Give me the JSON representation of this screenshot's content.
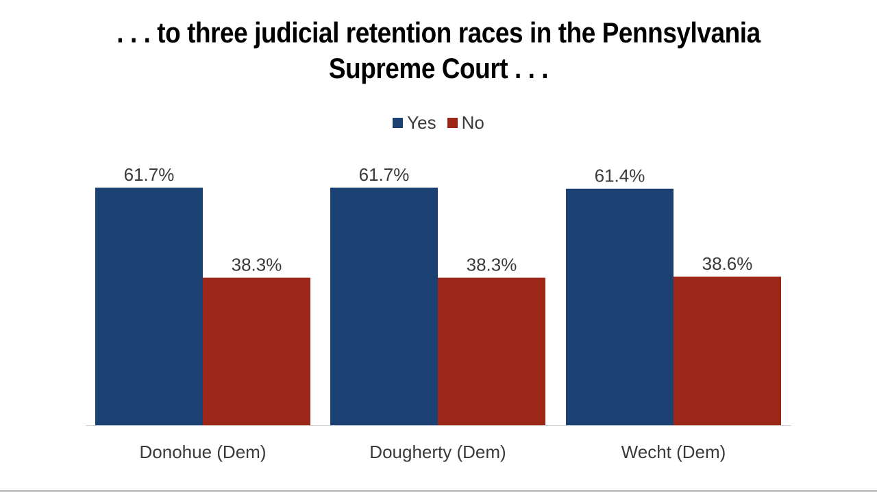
{
  "chart_data": {
    "type": "bar",
    "title": ". . . to three judicial retention races in the Pennsylvania Supreme Court . . .",
    "categories": [
      "Donohue (Dem)",
      "Dougherty (Dem)",
      "Wecht (Dem)"
    ],
    "series": [
      {
        "name": "Yes",
        "color": "#1b4173",
        "values": [
          61.7,
          61.7,
          61.4
        ],
        "labels": [
          "61.7%",
          "61.7%",
          "61.4%"
        ]
      },
      {
        "name": "No",
        "color": "#9c2617",
        "values": [
          38.3,
          38.3,
          38.6
        ],
        "labels": [
          "38.3%",
          "38.3%",
          "38.6%"
        ]
      }
    ],
    "ylim": [
      0,
      61.7
    ],
    "legend": "top-center",
    "grid": false,
    "xlabel": "",
    "ylabel": ""
  }
}
